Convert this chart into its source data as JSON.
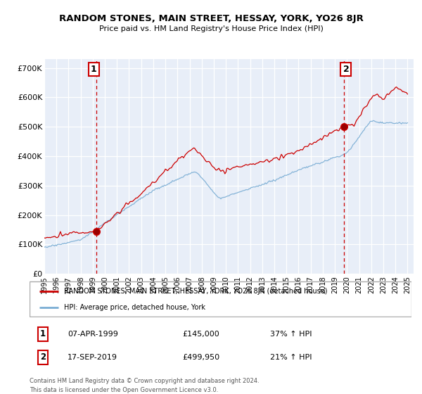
{
  "title": "RANDOM STONES, MAIN STREET, HESSAY, YORK, YO26 8JR",
  "subtitle": "Price paid vs. HM Land Registry's House Price Index (HPI)",
  "ylabel_ticks": [
    "£0",
    "£100K",
    "£200K",
    "£300K",
    "£400K",
    "£500K",
    "£600K",
    "£700K"
  ],
  "ytick_values": [
    0,
    100000,
    200000,
    300000,
    400000,
    500000,
    600000,
    700000
  ],
  "ylim": [
    0,
    730000
  ],
  "property_color": "#cc0000",
  "hpi_color": "#7aadd4",
  "legend_label_property": "RANDOM STONES, MAIN STREET, HESSAY, YORK, YO26 8JR (detached house)",
  "legend_label_hpi": "HPI: Average price, detached house, York",
  "annotation1_date": "07-APR-1999",
  "annotation1_price": "£145,000",
  "annotation1_hpi": "37% ↑ HPI",
  "annotation1_year": 1999.27,
  "annotation1_value": 145000,
  "annotation2_date": "17-SEP-2019",
  "annotation2_price": "£499,950",
  "annotation2_hpi": "21% ↑ HPI",
  "annotation2_year": 2019.72,
  "annotation2_value": 499950,
  "footnote": "Contains HM Land Registry data © Crown copyright and database right 2024.\nThis data is licensed under the Open Government Licence v3.0.",
  "plot_bg_color": "#e8eef8"
}
